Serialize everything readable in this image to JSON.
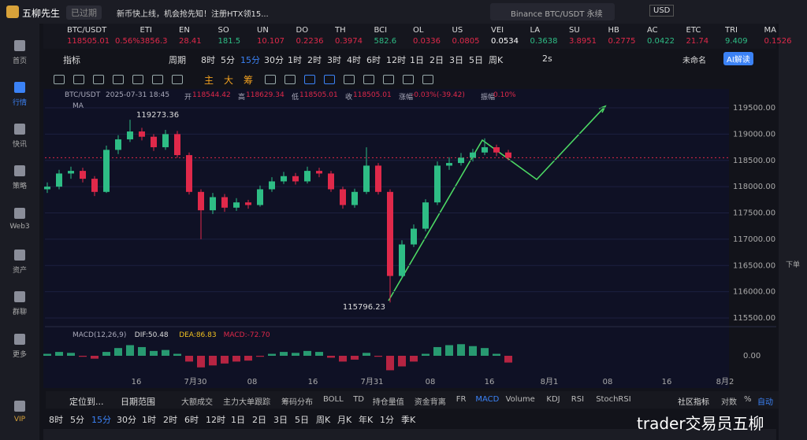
{
  "top_bar": {
    "app_name": "五柳先生",
    "status": "已过期",
    "notice": "新币快上线，机会抢先知！注册HTX领15...",
    "search": "Binance BTC/USDT 永续",
    "currency": "USD"
  },
  "sidebar": [
    "首页",
    "行情",
    "快讯",
    "策略",
    "Web3",
    "资产",
    "群聊",
    "更多",
    "VIP"
  ],
  "right_sidebar": [
    "下单"
  ],
  "tickers": [
    {
      "name": "BTC/USDT",
      "price": "118505.01",
      "change": "0.56%",
      "color": "#e0294a"
    },
    {
      "name": "ETI",
      "price": "3856.3",
      "color": "#e0294a"
    },
    {
      "name": "EN",
      "price": "28.41",
      "color": "#e0294a"
    },
    {
      "name": "SO",
      "price": "181.5",
      "color": "#2ebd85"
    },
    {
      "name": "UN",
      "price": "10.107",
      "color": "#e0294a"
    },
    {
      "name": "DO",
      "price": "0.2236",
      "color": "#e0294a"
    },
    {
      "name": "TH",
      "price": "0.3974",
      "color": "#e0294a"
    },
    {
      "name": "BCI",
      "price": "582.6",
      "color": "#2ebd85"
    },
    {
      "name": "OL",
      "price": "0.0336",
      "color": "#e0294a"
    },
    {
      "name": "US",
      "price": "0.0805",
      "color": "#e0294a"
    },
    {
      "name": "VEI",
      "price": "0.0534",
      "color": "#ffffff"
    },
    {
      "name": "LA",
      "price": "0.3638",
      "color": "#2ebd85"
    },
    {
      "name": "SU",
      "price": "3.8951",
      "color": "#e0294a"
    },
    {
      "name": "HB",
      "price": "0.2775",
      "color": "#e0294a"
    },
    {
      "name": "AC",
      "price": "0.0422",
      "color": "#2ebd85"
    },
    {
      "name": "ETC",
      "price": "21.74",
      "color": "#e0294a"
    },
    {
      "name": "TRI",
      "price": "9.409",
      "color": "#2ebd85"
    },
    {
      "name": "MA",
      "price": "0.1526",
      "color": "#e0294a"
    }
  ],
  "toolbar": {
    "indicator": "指标",
    "period": "周期",
    "intervals": [
      "8时",
      "5分",
      "15分",
      "30分",
      "1时",
      "2时",
      "3时",
      "4时",
      "6时",
      "12时",
      "1日",
      "2日",
      "3日",
      "5日",
      "周K"
    ],
    "active": "15分",
    "speed": "2s",
    "layout": "未命名",
    "ai": "AI解读"
  },
  "draw_tools": [
    "主",
    "大",
    "筹"
  ],
  "chart": {
    "type": "candlestick",
    "symbol": "BTC/USDT",
    "time": "2025-07-31 18:45",
    "open_label": "开",
    "open": "118544.42",
    "high_label": "高",
    "high": "118629.34",
    "low_label": "低",
    "low": "118505.01",
    "close_label": "收",
    "close": "118505.01",
    "change_label": "涨幅",
    "change": "-0.03%(-39.42)",
    "amp_label": "振幅",
    "amp": "0.10%",
    "ma": "MA",
    "ylim": [
      115500,
      119500
    ],
    "yticks": [
      {
        "value": 115500,
        "label": "115500.00"
      },
      {
        "value": 116000,
        "label": "116000.00"
      },
      {
        "value": 116500,
        "label": "116500.00"
      },
      {
        "value": 117000,
        "label": "117000.00"
      },
      {
        "value": 117500,
        "label": "117500.00"
      },
      {
        "value": 118000,
        "label": "118000.00"
      },
      {
        "value": 118500,
        "label": "118500.00"
      },
      {
        "value": 119000,
        "label": "119000.00"
      },
      {
        "value": 119500,
        "label": "119500.00"
      }
    ],
    "max_label": {
      "value": 119273.36,
      "label": "119273.36"
    },
    "min_label": {
      "value": 115796.23,
      "label": "115796.23"
    },
    "candles": [
      [
        117950,
        118080,
        117880,
        118000
      ],
      [
        118000,
        118320,
        117950,
        118250
      ],
      [
        118250,
        118380,
        118150,
        118300
      ],
      [
        118300,
        118360,
        118080,
        118150
      ],
      [
        118150,
        118200,
        117820,
        117900
      ],
      [
        117900,
        118780,
        117880,
        118700
      ],
      [
        118700,
        118980,
        118620,
        118900
      ],
      [
        118900,
        119273.36,
        118850,
        119050
      ],
      [
        119050,
        119120,
        118880,
        118950
      ],
      [
        118950,
        119000,
        118680,
        118750
      ],
      [
        118750,
        119080,
        118700,
        119000
      ],
      [
        119000,
        119060,
        118550,
        118600
      ],
      [
        118600,
        118650,
        117850,
        117900
      ],
      [
        117900,
        117950,
        117000,
        117550
      ],
      [
        117550,
        117880,
        117480,
        117800
      ],
      [
        117800,
        117860,
        117520,
        117600
      ],
      [
        117600,
        117780,
        117540,
        117700
      ],
      [
        117700,
        117750,
        117580,
        117650
      ],
      [
        117650,
        118020,
        117620,
        117950
      ],
      [
        117950,
        118180,
        117900,
        118100
      ],
      [
        118100,
        118280,
        118050,
        118200
      ],
      [
        118200,
        118260,
        118040,
        118100
      ],
      [
        118100,
        118380,
        118060,
        118300
      ],
      [
        118300,
        118360,
        118180,
        118250
      ],
      [
        118250,
        118300,
        117900,
        117950
      ],
      [
        117950,
        118000,
        117580,
        117650
      ],
      [
        117650,
        117960,
        117600,
        117900
      ],
      [
        117900,
        118750,
        117860,
        118400
      ],
      [
        118400,
        118450,
        117850,
        117900
      ],
      [
        117900,
        117950,
        115796.23,
        116300
      ],
      [
        116300,
        116980,
        116250,
        116900
      ],
      [
        116900,
        117280,
        116850,
        117200
      ],
      [
        117200,
        117760,
        117150,
        117700
      ],
      [
        117700,
        118480,
        117650,
        118400
      ],
      [
        118400,
        118560,
        118320,
        118450
      ],
      [
        118450,
        118640,
        118400,
        118550
      ],
      [
        118550,
        118720,
        118480,
        118650
      ],
      [
        118650,
        118920,
        118600,
        118750
      ],
      [
        118750,
        118800,
        118580,
        118650
      ],
      [
        118650,
        118700,
        118500,
        118550
      ]
    ]
  },
  "macd": {
    "label": "MACD(12,26,9)",
    "dif": "DIF:50.48",
    "dea": "DEA:86.83",
    "macd": "MACD:-72.70",
    "ylim": [
      -220,
      220
    ],
    "yticks": [
      {
        "value": 0,
        "label": "0.00"
      }
    ],
    "hist": [
      20,
      40,
      30,
      -10,
      -30,
      40,
      80,
      110,
      90,
      50,
      60,
      20,
      -60,
      -120,
      -100,
      -80,
      -60,
      -50,
      -10,
      20,
      40,
      30,
      50,
      40,
      -20,
      -60,
      -40,
      30,
      -10,
      -150,
      -110,
      -60,
      20,
      90,
      110,
      120,
      100,
      80,
      20,
      -70
    ]
  },
  "time_axis": [
    "16",
    "7月30",
    "08",
    "16",
    "7月31",
    "08",
    "16",
    "8月1",
    "08",
    "16",
    "8月2"
  ],
  "bottom_tabs": {
    "locate": "定位到...",
    "range": "日期范围",
    "items": [
      "大额成交",
      "主力大单跟踪",
      "筹码分布",
      "BOLL",
      "TD",
      "持仓量值",
      "资金背离",
      "FR",
      "MACD",
      "Volume",
      "KDJ",
      "RSI",
      "StochRSI"
    ],
    "community": "社区指标",
    "log": "对数",
    "percent": "%",
    "auto": "自动"
  },
  "intervals": [
    "8时",
    "5分",
    "15分",
    "30分",
    "1时",
    "2时",
    "6时",
    "12时",
    "1日",
    "2日",
    "3日",
    "5日",
    "周K",
    "月K",
    "年K",
    "1分",
    "季K"
  ],
  "watermark": "trader交易员五柳"
}
